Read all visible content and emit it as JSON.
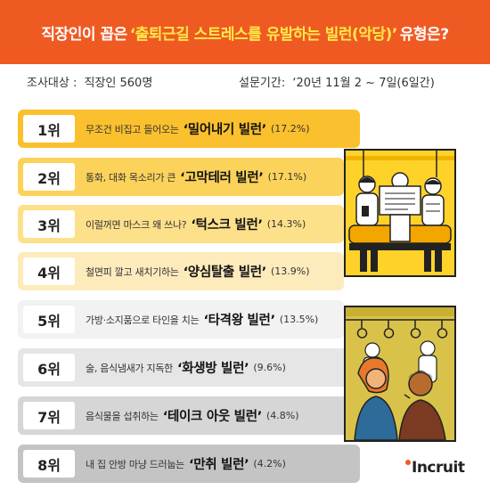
{
  "title": {
    "before": "직장인이 꼽은",
    "highlight": "‘출퇴근길 스트레스를 유발하는 빌런(악당)’",
    "after": "유형은?"
  },
  "survey": {
    "target_label": "조사대상 :",
    "target_value": "직장인 560명",
    "period_label": "설문기간:",
    "period_value": "‘20년 11월 2 ~ 7일(6일간)"
  },
  "chart_data": {
    "type": "bar",
    "title": "직장인이 꼽은 ‘출퇴근길 스트레스를 유발하는 빌런(악당)’ 유형은?",
    "unit": "%",
    "categories": [
      "밀어내기 빌런",
      "고막테러 빌런",
      "턱스크 빌런",
      "양심탈출 빌런",
      "타격왕 빌런",
      "화생방 빌런",
      "테이크 아웃 빌런",
      "만취 빌런"
    ],
    "values": [
      17.2,
      17.1,
      14.3,
      13.9,
      13.5,
      9.6,
      4.8,
      4.2
    ],
    "items": [
      {
        "rank": "1위",
        "desc": "무조건 비집고 들어오는",
        "name": "‘밀어내기 빌런’",
        "pct": "(17.2%)",
        "value": 17.2,
        "color": "#fbc02d"
      },
      {
        "rank": "2위",
        "desc": "통화, 대화 목소리가 큰",
        "name": "‘고막테러 빌런’",
        "pct": "(17.1%)",
        "value": 17.1,
        "color": "#fcd35a"
      },
      {
        "rank": "3위",
        "desc": "이럴꺼면 마스크 왜 쓰나?",
        "name": "‘턱스크 빌런’",
        "pct": "(14.3%)",
        "value": 14.3,
        "color": "#fde08a"
      },
      {
        "rank": "4위",
        "desc": "철면피 깔고 새치기하는",
        "name": "‘양심탈출 빌런’",
        "pct": "(13.9%)",
        "value": 13.9,
        "color": "#fdebbc"
      },
      {
        "rank": "5위",
        "desc": "가방·소지품으로 타인을 치는",
        "name": "‘타격왕 빌런’",
        "pct": "(13.5%)",
        "value": 13.5,
        "color": "#f2f2f2"
      },
      {
        "rank": "6위",
        "desc": "술, 음식냄새가 지독한",
        "name": "‘화생방 빌런’",
        "pct": "(9.6%)",
        "value": 9.6,
        "color": "#e6e6e6"
      },
      {
        "rank": "7위",
        "desc": "음식물을 섭취하는",
        "name": "‘테이크 아웃 빌런’",
        "pct": "(4.8%)",
        "value": 4.8,
        "color": "#d6d6d6"
      },
      {
        "rank": "8위",
        "desc": "내 집 안방 마냥 드러눕는",
        "name": "‘만취 빌런’",
        "pct": "(4.2%)",
        "value": 4.2,
        "color": "#c4c4c4"
      }
    ]
  },
  "logo": {
    "text": "Incruit",
    "color": "#ef5a23"
  },
  "illustrations": {
    "top": "subway-seat-passengers-illustration",
    "bottom": "subway-standing-passengers-illustration"
  }
}
